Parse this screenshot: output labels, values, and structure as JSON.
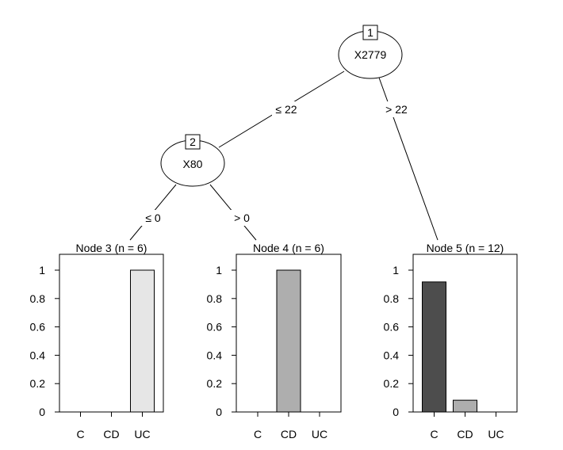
{
  "tree": {
    "inner_nodes": [
      {
        "id": "1",
        "label": "X2779"
      },
      {
        "id": "2",
        "label": "X80"
      }
    ],
    "edge_labels": {
      "n1_left": "≤ 22",
      "n1_right": "> 22",
      "n2_left": "≤ 0",
      "n2_right": "> 0"
    }
  },
  "chart_data": [
    {
      "type": "bar",
      "title": "Node 3 (n = 6)",
      "categories": [
        "C",
        "CD",
        "UC"
      ],
      "values": [
        0,
        0,
        1
      ],
      "ylim": [
        0,
        1
      ],
      "yticks": [
        "0",
        "0.2",
        "0.4",
        "0.6",
        "0.8",
        "1"
      ],
      "colors": [
        "#4d4d4d",
        "#aeaeae",
        "#e6e6e6"
      ]
    },
    {
      "type": "bar",
      "title": "Node 4 (n = 6)",
      "categories": [
        "C",
        "CD",
        "UC"
      ],
      "values": [
        0,
        1,
        0
      ],
      "ylim": [
        0,
        1
      ],
      "yticks": [
        "0",
        "0.2",
        "0.4",
        "0.6",
        "0.8",
        "1"
      ],
      "colors": [
        "#4d4d4d",
        "#aeaeae",
        "#e6e6e6"
      ]
    },
    {
      "type": "bar",
      "title": "Node 5 (n = 12)",
      "categories": [
        "C",
        "CD",
        "UC"
      ],
      "values": [
        0.917,
        0.083,
        0
      ],
      "ylim": [
        0,
        1
      ],
      "yticks": [
        "0",
        "0.2",
        "0.4",
        "0.6",
        "0.8",
        "1"
      ],
      "colors": [
        "#4d4d4d",
        "#aeaeae",
        "#e6e6e6"
      ]
    }
  ]
}
